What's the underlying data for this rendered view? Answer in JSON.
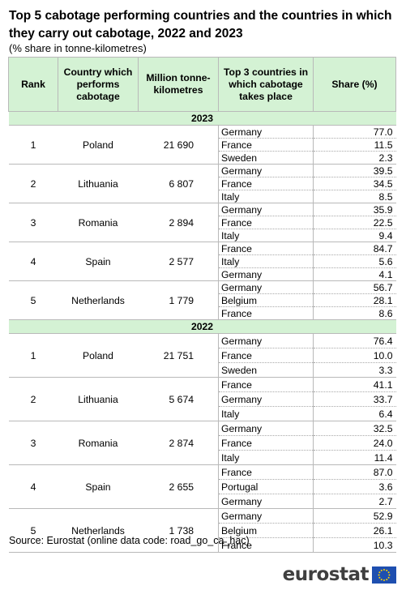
{
  "title": "Top 5 cabotage performing countries and the countries in which they carry out cabotage, 2022 and 2023",
  "subtitle": "(% share in tonne-kilometres)",
  "columns": {
    "rank": "Rank",
    "country": "Country which performs cabotage",
    "million": "Million tonne-kilometres",
    "top3": "Top 3 countries in which cabotage takes place",
    "share": "Share (%)"
  },
  "blocks": [
    {
      "year": "2023",
      "rows": [
        {
          "rank": "1",
          "country": "Poland",
          "mtkm": "21 690",
          "top": [
            {
              "c": "Germany",
              "s": "77.0"
            },
            {
              "c": "France",
              "s": "11.5"
            },
            {
              "c": "Sweden",
              "s": "2.3"
            }
          ]
        },
        {
          "rank": "2",
          "country": "Lithuania",
          "mtkm": "6 807",
          "top": [
            {
              "c": "Germany",
              "s": "39.5"
            },
            {
              "c": "France",
              "s": "34.5"
            },
            {
              "c": "Italy",
              "s": "8.5"
            }
          ]
        },
        {
          "rank": "3",
          "country": "Romania",
          "mtkm": "2 894",
          "top": [
            {
              "c": "Germany",
              "s": "35.9"
            },
            {
              "c": "France",
              "s": "22.5"
            },
            {
              "c": "Italy",
              "s": "9.4"
            }
          ]
        },
        {
          "rank": "4",
          "country": "Spain",
          "mtkm": "2 577",
          "top": [
            {
              "c": "France",
              "s": "84.7"
            },
            {
              "c": "Italy",
              "s": "5.6"
            },
            {
              "c": "Germany",
              "s": "4.1"
            }
          ]
        },
        {
          "rank": "5",
          "country": "Netherlands",
          "mtkm": "1 779",
          "top": [
            {
              "c": "Germany",
              "s": "56.7"
            },
            {
              "c": "Belgium",
              "s": "28.1"
            },
            {
              "c": "France",
              "s": "8.6"
            }
          ]
        }
      ]
    },
    {
      "year": "2022",
      "rows": [
        {
          "rank": "1",
          "country": "Poland",
          "mtkm": "21 751",
          "top": [
            {
              "c": "Germany",
              "s": "76.4"
            },
            {
              "c": "France",
              "s": "10.0"
            },
            {
              "c": "Sweden",
              "s": "3.3"
            }
          ]
        },
        {
          "rank": "2",
          "country": "Lithuania",
          "mtkm": "5 674",
          "top": [
            {
              "c": "France",
              "s": "41.1"
            },
            {
              "c": "Germany",
              "s": "33.7"
            },
            {
              "c": "Italy",
              "s": "6.4"
            }
          ]
        },
        {
          "rank": "3",
          "country": "Romania",
          "mtkm": "2 874",
          "top": [
            {
              "c": "Germany",
              "s": "32.5"
            },
            {
              "c": "France",
              "s": "24.0"
            },
            {
              "c": "Italy",
              "s": "11.4"
            }
          ]
        },
        {
          "rank": "4",
          "country": "Spain",
          "mtkm": "2 655",
          "top": [
            {
              "c": "France",
              "s": "87.0"
            },
            {
              "c": "Portugal",
              "s": "3.6"
            },
            {
              "c": "Germany",
              "s": "2.7"
            }
          ]
        },
        {
          "rank": "5",
          "country": "Netherlands",
          "mtkm": "1 738",
          "top": [
            {
              "c": "Germany",
              "s": "52.9"
            },
            {
              "c": "Belgium",
              "s": "26.1"
            },
            {
              "c": "France",
              "s": "10.3"
            }
          ]
        }
      ]
    }
  ],
  "source": "Source: Eurostat (online data code: road_go_ca_hac)",
  "logo": {
    "text": "eurostat",
    "flag_color": "#1e4fb0",
    "star_color": "#ffd200",
    "icon": "eu-flag-icon"
  }
}
